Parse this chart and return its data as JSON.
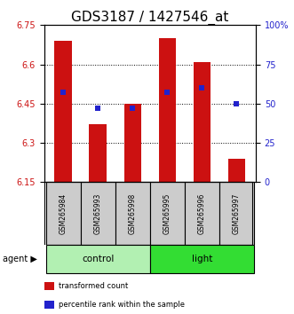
{
  "title": "GDS3187 / 1427546_at",
  "samples": [
    "GSM265984",
    "GSM265993",
    "GSM265998",
    "GSM265995",
    "GSM265996",
    "GSM265997"
  ],
  "bar_values": [
    6.69,
    6.37,
    6.45,
    6.7,
    6.61,
    6.24
  ],
  "percentile_values": [
    57,
    47,
    47,
    57,
    60,
    50
  ],
  "baseline": 6.15,
  "ylim_left": [
    6.15,
    6.75
  ],
  "ylim_right": [
    0,
    100
  ],
  "yticks_left": [
    6.15,
    6.3,
    6.45,
    6.6,
    6.75
  ],
  "ytick_labels_left": [
    "6.15",
    "6.3",
    "6.45",
    "6.6",
    "6.75"
  ],
  "yticks_right": [
    0,
    25,
    50,
    75,
    100
  ],
  "ytick_labels_right": [
    "0",
    "25",
    "50",
    "75",
    "100%"
  ],
  "groups": [
    {
      "label": "control",
      "indices": [
        0,
        1,
        2
      ],
      "color": "#b2f0b2"
    },
    {
      "label": "light",
      "indices": [
        3,
        4,
        5
      ],
      "color": "#33dd33"
    }
  ],
  "bar_color": "#cc1111",
  "percentile_color": "#2222cc",
  "bar_width": 0.5,
  "title_fontsize": 11,
  "axis_color_left": "#cc1111",
  "axis_color_right": "#2222cc",
  "sample_box_color": "#cccccc",
  "legend_items": [
    {
      "label": "transformed count",
      "color": "#cc1111"
    },
    {
      "label": "percentile rank within the sample",
      "color": "#2222cc"
    }
  ]
}
